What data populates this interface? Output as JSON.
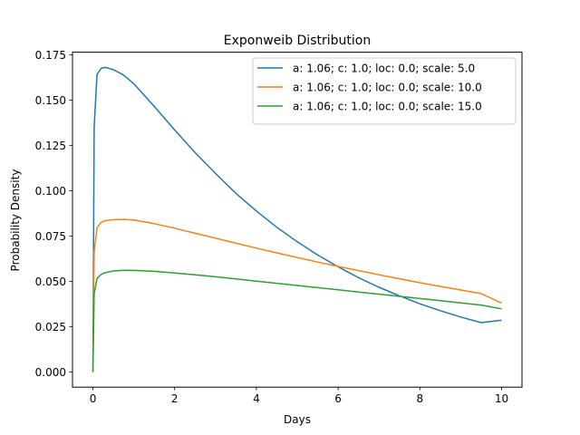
{
  "chart_data": {
    "type": "line",
    "title": "Exponweib Distribution",
    "xlabel": "Days",
    "ylabel": "Probability Density",
    "xlim": [
      -0.5,
      10.5
    ],
    "ylim": [
      -0.0084,
      0.1764
    ],
    "x_ticks": [
      0,
      2,
      4,
      6,
      8,
      10
    ],
    "x_tick_labels": [
      "0",
      "2",
      "4",
      "6",
      "8",
      "10"
    ],
    "y_ticks": [
      0.0,
      0.025,
      0.05,
      0.075,
      0.1,
      0.125,
      0.15,
      0.175
    ],
    "y_tick_labels": [
      "0.000",
      "0.025",
      "0.050",
      "0.075",
      "0.100",
      "0.125",
      "0.150",
      "0.175"
    ],
    "grid": false,
    "legend_position": "top-right",
    "series": [
      {
        "name": "a: 1.06; c: 1.0; loc: 0.0; scale: 5.0",
        "color": "#1f77b4",
        "x": [
          0,
          0.03,
          0.1,
          0.2,
          0.3,
          0.5,
          0.75,
          1,
          1.5,
          2,
          2.5,
          3,
          3.5,
          4,
          4.5,
          5,
          5.5,
          6,
          6.5,
          7,
          7.5,
          8,
          8.5,
          9,
          9.5,
          10
        ],
        "y": [
          0.0,
          0.135,
          0.164,
          0.1675,
          0.168,
          0.1668,
          0.1638,
          0.159,
          0.1465,
          0.1335,
          0.121,
          0.1095,
          0.0985,
          0.0888,
          0.0798,
          0.0718,
          0.0645,
          0.058,
          0.052,
          0.0467,
          0.042,
          0.0376,
          0.0338,
          0.0303,
          0.0272,
          0.0285
        ]
      },
      {
        "name": "a: 1.06; c: 1.0; loc: 0.0; scale: 10.0",
        "color": "#ff7f0e",
        "x": [
          0,
          0.03,
          0.1,
          0.2,
          0.3,
          0.5,
          0.75,
          1,
          1.5,
          2,
          2.5,
          3,
          3.5,
          4,
          4.5,
          5,
          5.5,
          6,
          6.5,
          7,
          7.5,
          8,
          8.5,
          9,
          9.5,
          10
        ],
        "y": [
          0.0,
          0.066,
          0.0795,
          0.0825,
          0.0835,
          0.084,
          0.0842,
          0.0838,
          0.0818,
          0.0793,
          0.0765,
          0.0738,
          0.071,
          0.0683,
          0.0657,
          0.0631,
          0.0606,
          0.0582,
          0.0559,
          0.0536,
          0.0514,
          0.0492,
          0.0472,
          0.0452,
          0.0432,
          0.038
        ]
      },
      {
        "name": "a: 1.06; c: 1.0; loc: 0.0; scale: 15.0",
        "color": "#2ca02c",
        "x": [
          0,
          0.03,
          0.1,
          0.2,
          0.3,
          0.5,
          0.75,
          1,
          1.5,
          2,
          2.5,
          3,
          3.5,
          4,
          4.5,
          5,
          5.5,
          6,
          6.5,
          7,
          7.5,
          8,
          8.5,
          9,
          9.5,
          10
        ],
        "y": [
          0.0,
          0.043,
          0.0515,
          0.0538,
          0.0548,
          0.0557,
          0.0561,
          0.056,
          0.0555,
          0.0546,
          0.0536,
          0.0525,
          0.0513,
          0.0501,
          0.0489,
          0.0477,
          0.0465,
          0.0453,
          0.0441,
          0.0429,
          0.0417,
          0.0405,
          0.0393,
          0.0381,
          0.0369,
          0.0348
        ]
      }
    ]
  }
}
